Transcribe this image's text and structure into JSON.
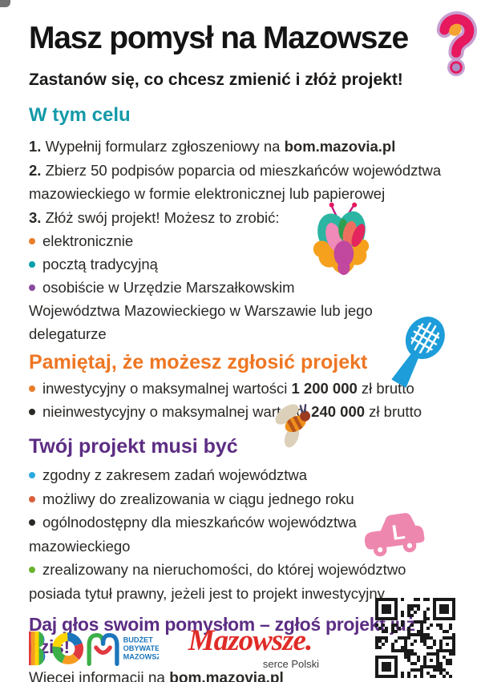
{
  "colors": {
    "teal_heading": "#149aa8",
    "orange_heading": "#ee7623",
    "purple_heading": "#5c2d83",
    "body_text": "#2b2926",
    "question_mark_pink": "#e6185e",
    "question_mark_orange": "#f6a233",
    "question_mark_dot_purple": "#a98fc6",
    "racket_blue": "#1d9dd9",
    "car_pink": "#ee87ae",
    "mazowsze_red": "#e02b27",
    "bom_blue": "#1b75bb",
    "bullet_colors": {
      "celu": [
        "#e87d2b",
        "#00a0ab",
        "#8a4a9e"
      ],
      "pamietaj": [
        "#e87d2b",
        "#2b2926"
      ],
      "musi": [
        "#2aa9df",
        "#d9603b",
        "#2b2926",
        "#69b32e"
      ]
    }
  },
  "header": {
    "title": "Masz pomysł na Mazowsze",
    "subtitle": "Zastanów się, co chcesz zmienić i złóż projekt!"
  },
  "celu": {
    "heading": "W tym celu",
    "step1": {
      "num": "1.",
      "pre": " Wypełnij formularz zgłoszeniowy na  ",
      "bold": "bom.mazovia.pl"
    },
    "step2": {
      "num": "2.",
      "text": " Zbierz 50 podpisów poparcia od mieszkańców województwa mazowieckiego w formie elektronicznej lub papierowej"
    },
    "step3": {
      "num": "3.",
      "text": " Złóż swój projekt! Możesz to zrobić:"
    },
    "bullets": [
      {
        "label": "elektronicznie"
      },
      {
        "label": "pocztą tradycyjną"
      },
      {
        "label": "osobiście w Urzędzie Marszałkowskim"
      }
    ],
    "continuation": "Województwa Mazowieckiego w Warszawie lub jego delegaturze"
  },
  "pamietaj": {
    "heading": "Pamiętaj, że możesz zgłosić projekt",
    "bullets": [
      {
        "pre": "inwestycyjny o maksymalnej wartości ",
        "bold": "1 200 000",
        "post": " zł brutto"
      },
      {
        "pre": "nieinwestycyjny o maksymalnej wartości ",
        "bold": "240 000",
        "post": " zł brutto"
      }
    ]
  },
  "musi": {
    "heading": "Twój projekt musi być",
    "bullets": [
      {
        "label": "zgodny z zakresem zadań województwa"
      },
      {
        "label": "możliwy do zrealizowania w ciągu jednego roku"
      },
      {
        "label": "ogólnodostępny dla mieszkańców województwa mazowieckiego"
      },
      {
        "label": "zrealizowany na nieruchomości, do której województwo"
      }
    ],
    "continuation": "posiada tytuł prawny, jeżeli jest to projekt inwestycyjny"
  },
  "footer": {
    "cta": "Daj głos swoim pomysłom – zgłoś projekt już dziś!",
    "info_pre": "Więcej informacji na ",
    "info_bold": "bom.mazovia.pl",
    "bom_logo_lines": [
      "BUDŻET",
      "OBYWATELSKI",
      "MAZOWSZA"
    ],
    "mazowsze_logo": "Mazowsze.",
    "mazowsze_tagline": "serce Polski"
  },
  "icons": {
    "question_mark": "?",
    "car_letter": "L",
    "names": [
      "question-mark-icon",
      "butterfly-icon",
      "tennis-racket-icon",
      "bee-icon",
      "learner-car-icon",
      "qr-code"
    ]
  }
}
